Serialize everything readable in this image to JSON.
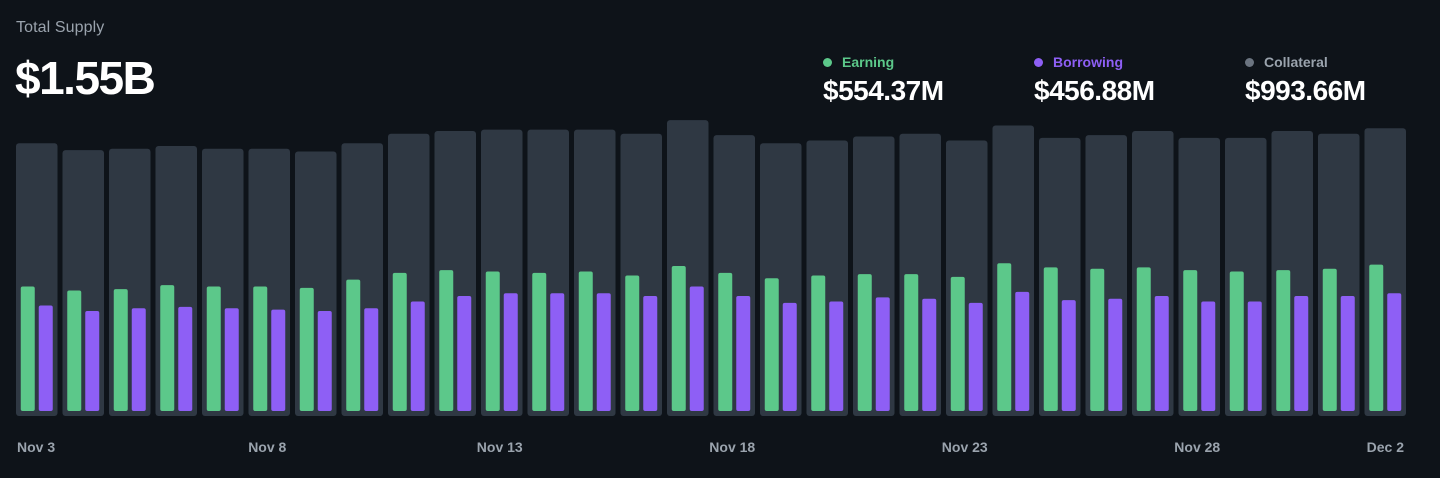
{
  "header": {
    "title": "Total Supply",
    "total_value": "$1.55B"
  },
  "legend": [
    {
      "key": "earning",
      "label": "Earning",
      "value": "$554.37M",
      "color": "#5cc88a"
    },
    {
      "key": "borrowing",
      "label": "Borrowing",
      "value": "$456.88M",
      "color": "#8e5ff5"
    },
    {
      "key": "collateral",
      "label": "Collateral",
      "value": "$993.66M",
      "color": "#6b7480"
    }
  ],
  "colors": {
    "background": "#0e1319",
    "collateral_bar": "#2f3843",
    "earning": "#5cc88a",
    "borrowing": "#8e5ff5",
    "tick_text": "#9aa3ad"
  },
  "chart_data": {
    "type": "bar",
    "title": "Total Supply",
    "xlabel": "",
    "ylabel": "",
    "categories": [
      "Nov 3",
      "Nov 4",
      "Nov 5",
      "Nov 6",
      "Nov 7",
      "Nov 8",
      "Nov 9",
      "Nov 10",
      "Nov 11",
      "Nov 12",
      "Nov 13",
      "Nov 14",
      "Nov 15",
      "Nov 16",
      "Nov 17",
      "Nov 18",
      "Nov 19",
      "Nov 20",
      "Nov 21",
      "Nov 22",
      "Nov 23",
      "Nov 24",
      "Nov 25",
      "Nov 26",
      "Nov 27",
      "Nov 28",
      "Nov 29",
      "Nov 30",
      "Dec 1",
      "Dec 2"
    ],
    "tick_labels": [
      "Nov 3",
      "Nov 8",
      "Nov 13",
      "Nov 18",
      "Nov 23",
      "Nov 28",
      "Dec 2"
    ],
    "ylim": [
      0,
      1100
    ],
    "grid": false,
    "legend_position": "top-right",
    "series": [
      {
        "name": "Collateral",
        "color": "#2f3843",
        "values": [
          1000,
          975,
          980,
          990,
          980,
          980,
          970,
          1000,
          1035,
          1045,
          1050,
          1050,
          1050,
          1035,
          1085,
          1030,
          1000,
          1010,
          1025,
          1035,
          1010,
          1065,
          1020,
          1030,
          1045,
          1020,
          1020,
          1045,
          1035,
          1055
        ]
      },
      {
        "name": "Earning",
        "color": "#5cc88a",
        "values": [
          475,
          460,
          465,
          480,
          475,
          475,
          470,
          500,
          525,
          535,
          530,
          525,
          530,
          515,
          550,
          525,
          505,
          515,
          520,
          520,
          510,
          560,
          545,
          540,
          545,
          535,
          530,
          535,
          540,
          555
        ]
      },
      {
        "name": "Borrowing",
        "color": "#8e5ff5",
        "values": [
          405,
          385,
          395,
          400,
          395,
          390,
          385,
          395,
          420,
          440,
          450,
          450,
          450,
          440,
          475,
          440,
          415,
          420,
          435,
          430,
          415,
          455,
          425,
          430,
          440,
          420,
          420,
          440,
          440,
          450
        ]
      }
    ]
  }
}
